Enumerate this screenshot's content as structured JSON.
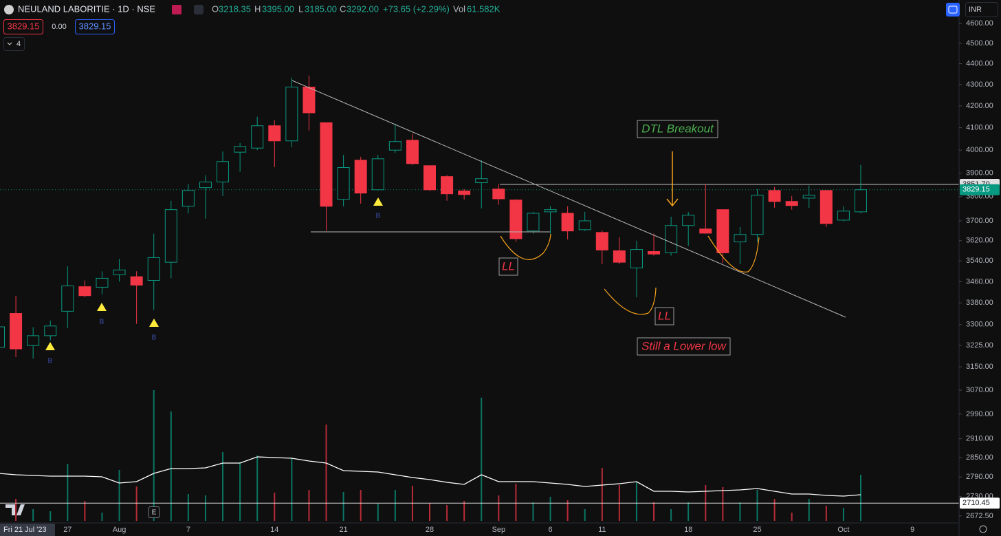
{
  "header": {
    "symbol": "NEULAND LABORITIE · 1D · NSE",
    "o_label": "O",
    "open": "3218.35",
    "h_label": "H",
    "high": "3395.00",
    "l_label": "L",
    "low": "3185.00",
    "c_label": "C",
    "close": "3292.00",
    "change": "+73.65 (+2.29%)",
    "vol_label": "Vol",
    "volume": "61.582K"
  },
  "toolbar": {
    "sell_price": "3829.15",
    "spread": "0.00",
    "buy_price": "3829.15",
    "indicators": "4",
    "currency": "INR",
    "event": "E"
  },
  "annotations": {
    "breakout": "DTL Breakout",
    "ll_first": "LL",
    "ll_second": "LL",
    "lower_low": "Still a Lower low",
    "buy_signals": [
      "B",
      "B",
      "B",
      "B"
    ]
  },
  "chart_data": {
    "type": "candlestick",
    "log_scale": true,
    "grid": false,
    "up_color": "#089981",
    "down_color": "#f23645",
    "ma_color": "#ffffff",
    "categories": [
      "Fri 21 Jul '23",
      null,
      null,
      null,
      "27",
      null,
      null,
      "Aug",
      null,
      null,
      null,
      "7",
      null,
      null,
      null,
      null,
      "14",
      null,
      null,
      null,
      "21",
      null,
      null,
      null,
      null,
      "28",
      null,
      null,
      null,
      "Sep",
      null,
      null,
      "6",
      null,
      null,
      "11",
      null,
      null,
      null,
      null,
      "18",
      null,
      null,
      null,
      "25",
      null,
      null,
      null,
      null,
      "Oct",
      null,
      null,
      null,
      "9"
    ],
    "open": [
      3218.35,
      3341,
      3225,
      3260,
      3349,
      3441,
      3439,
      3487,
      3479,
      3465,
      3535,
      3760,
      3838,
      3862,
      3991,
      4009,
      4109,
      4041,
      4288,
      4123,
      3789,
      3956,
      3829,
      4000,
      4044,
      3932,
      3885,
      3824,
      3859,
      3832,
      3786,
      3659,
      3737,
      3731,
      3664,
      3653,
      3580,
      3513,
      3577,
      3572,
      3681,
      3667,
      3746,
      3615,
      3645,
      3826,
      3780,
      3794,
      3826,
      3703,
      3737,
      null,
      null,
      null
    ],
    "high": [
      3395,
      3407,
      3291,
      3315,
      3519,
      3465,
      3500,
      3548,
      3500,
      3648,
      3783,
      3853,
      3891,
      3994,
      4031,
      4150,
      4134,
      4333,
      4343,
      4123,
      3979,
      3971,
      3979,
      4119,
      4072,
      3932,
      3891,
      3832,
      3956,
      3853,
      3789,
      3737,
      3760,
      3760,
      3737,
      3661,
      3634,
      3620,
      3648,
      3717,
      3737,
      3853,
      3746,
      3675,
      3832,
      3841,
      3803,
      3847,
      3826,
      3760,
      3935,
      null,
      null,
      null
    ],
    "low": [
      3185,
      3184,
      3179,
      3244,
      3288,
      3401,
      3412,
      3460,
      3303,
      3354,
      3473,
      3731,
      3709,
      3803,
      3906,
      4000,
      3926,
      4013,
      4088,
      3659,
      3760,
      3771,
      3826,
      3988,
      3935,
      3824,
      3783,
      3789,
      3751,
      3766,
      3615,
      3648,
      3648,
      3625,
      3659,
      3527,
      3527,
      3401,
      3561,
      3561,
      3599,
      3648,
      3532,
      3527,
      3615,
      3754,
      3746,
      3754,
      3675,
      3697,
      3731,
      null,
      null,
      null
    ],
    "close": [
      3292,
      3213,
      3260,
      3295,
      3444,
      3407,
      3473,
      3505,
      3447,
      3553,
      3746,
      3826,
      3862,
      3950,
      4016,
      4109,
      4041,
      4288,
      4168,
      3760,
      3924,
      3815,
      3962,
      4038,
      3941,
      3829,
      3812,
      3809,
      3876,
      3791,
      3628,
      3731,
      3746,
      3659,
      3700,
      3583,
      3535,
      3585,
      3567,
      3681,
      3723,
      3650,
      3572,
      3645,
      3806,
      3780,
      3763,
      3806,
      3689,
      3740,
      3829.15,
      null,
      null,
      null
    ],
    "volume": [
      61582,
      32000,
      17000,
      14000,
      83000,
      29000,
      12000,
      74000,
      50000,
      190000,
      159000,
      39000,
      37000,
      100000,
      85000,
      95000,
      41000,
      92000,
      45000,
      140000,
      42000,
      45000,
      25000,
      45000,
      51000,
      26000,
      23000,
      29000,
      179000,
      37000,
      54000,
      27000,
      35000,
      30000,
      17000,
      77000,
      52000,
      57000,
      27000,
      17000,
      27000,
      52000,
      49000,
      27000,
      45000,
      32000,
      12000,
      32000,
      22000,
      19000,
      67000,
      null,
      null,
      null
    ],
    "volume_ma": [
      69000,
      67000,
      66000,
      65000,
      65000,
      65000,
      64000,
      55000,
      57000,
      69000,
      76000,
      76000,
      77000,
      84000,
      84000,
      93000,
      92000,
      91000,
      87000,
      84000,
      73000,
      72000,
      71000,
      67000,
      63000,
      60000,
      56000,
      53000,
      67000,
      57000,
      57000,
      57000,
      55000,
      53000,
      50000,
      52000,
      54000,
      57000,
      43000,
      43000,
      42000,
      43000,
      44000,
      45000,
      47000,
      43000,
      39000,
      39000,
      37000,
      36000,
      38000,
      null,
      null,
      null
    ],
    "ylim": [
      2652,
      4720
    ],
    "yticks": [
      {
        "value": 4600,
        "label": "4600.00"
      },
      {
        "value": 4500,
        "label": "4500.00"
      },
      {
        "value": 4400,
        "label": "4400.00"
      },
      {
        "value": 4300,
        "label": "4300.00"
      },
      {
        "value": 4200,
        "label": "4200.00"
      },
      {
        "value": 4100,
        "label": "4100.00"
      },
      {
        "value": 4000,
        "label": "4000.00"
      },
      {
        "value": 3900,
        "label": "3900.00"
      },
      {
        "value": 3800,
        "label": "3800.00"
      },
      {
        "value": 3700,
        "label": "3700.00"
      },
      {
        "value": 3620,
        "label": "3620.00"
      },
      {
        "value": 3540,
        "label": "3540.00"
      },
      {
        "value": 3460,
        "label": "3460.00"
      },
      {
        "value": 3380,
        "label": "3380.00"
      },
      {
        "value": 3300,
        "label": "3300.00"
      },
      {
        "value": 3225,
        "label": "3225.00"
      },
      {
        "value": 3150,
        "label": "3150.00"
      },
      {
        "value": 3070,
        "label": "3070.00"
      },
      {
        "value": 2990,
        "label": "2990.00"
      },
      {
        "value": 2910,
        "label": "2910.00"
      },
      {
        "value": 2850,
        "label": "2850.00"
      },
      {
        "value": 2790,
        "label": "2790.00"
      },
      {
        "value": 2730,
        "label": "2730.00"
      },
      {
        "value": 2672.5,
        "label": "2672.50"
      }
    ],
    "price_lines": [
      {
        "value": 3851.7,
        "label": "3851.70",
        "color": "#e0e0e0"
      },
      {
        "value": 3829.15,
        "label": "3829.15",
        "color": "#089981"
      },
      {
        "value": 2710.45,
        "label": "2710.45",
        "color": "#ffffff"
      }
    ]
  }
}
